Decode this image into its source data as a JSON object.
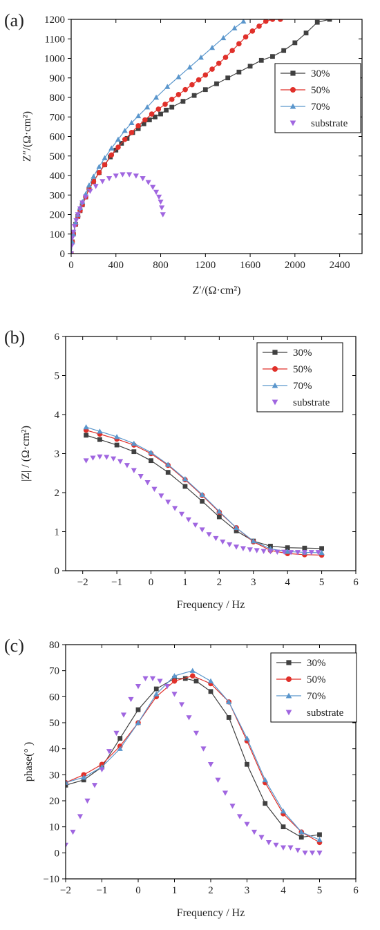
{
  "colors": {
    "30%": "#404040",
    "50%": "#e0302a",
    "70%": "#5a96cc",
    "substrate": "#a066e0"
  },
  "chart_data": [
    {
      "id": "a",
      "type": "scatter",
      "panel_label": "(a)",
      "xlabel": "Z′/(Ω·cm²)",
      "ylabel": "Z″/(Ω·cm²)",
      "xlim": [
        0,
        2600
      ],
      "ylim": [
        0,
        1200
      ],
      "xticks": [
        0,
        400,
        800,
        1200,
        1600,
        2000,
        2400
      ],
      "yticks": [
        0,
        100,
        200,
        300,
        400,
        500,
        600,
        700,
        800,
        900,
        1000,
        1100,
        1200
      ],
      "legend_position": "right",
      "series": [
        {
          "name": "30%",
          "marker": "square",
          "line": true,
          "x": [
            0,
            10,
            20,
            40,
            60,
            80,
            100,
            130,
            160,
            200,
            250,
            300,
            350,
            400,
            450,
            500,
            550,
            600,
            650,
            700,
            750,
            800,
            850,
            900,
            1000,
            1100,
            1200,
            1300,
            1400,
            1500,
            1600,
            1700,
            1800,
            1900,
            2000,
            2100,
            2200,
            2310
          ],
          "y": [
            0,
            60,
            100,
            150,
            190,
            220,
            250,
            290,
            330,
            370,
            415,
            455,
            495,
            530,
            565,
            590,
            620,
            640,
            665,
            685,
            700,
            715,
            735,
            750,
            780,
            810,
            840,
            870,
            900,
            930,
            960,
            990,
            1010,
            1040,
            1080,
            1130,
            1185,
            1200
          ]
        },
        {
          "name": "50%",
          "marker": "circle",
          "line": true,
          "x": [
            0,
            10,
            20,
            40,
            60,
            80,
            100,
            130,
            160,
            200,
            250,
            300,
            360,
            420,
            480,
            540,
            600,
            660,
            720,
            780,
            840,
            900,
            960,
            1020,
            1080,
            1140,
            1200,
            1260,
            1320,
            1380,
            1440,
            1500,
            1560,
            1620,
            1680,
            1740,
            1800,
            1870
          ],
          "y": [
            0,
            60,
            100,
            150,
            190,
            220,
            250,
            290,
            330,
            370,
            415,
            455,
            505,
            545,
            585,
            620,
            655,
            685,
            715,
            740,
            765,
            790,
            815,
            840,
            865,
            890,
            915,
            945,
            975,
            1005,
            1040,
            1075,
            1110,
            1140,
            1165,
            1190,
            1200,
            1200
          ]
        },
        {
          "name": "70%",
          "marker": "triangle-up",
          "line": true,
          "x": [
            0,
            10,
            20,
            40,
            60,
            80,
            100,
            130,
            160,
            200,
            250,
            300,
            360,
            420,
            480,
            540,
            600,
            680,
            760,
            860,
            960,
            1060,
            1160,
            1260,
            1360,
            1460,
            1540
          ],
          "y": [
            0,
            60,
            100,
            160,
            200,
            235,
            265,
            305,
            350,
            395,
            445,
            490,
            540,
            585,
            630,
            670,
            705,
            750,
            800,
            855,
            905,
            955,
            1005,
            1055,
            1105,
            1155,
            1190
          ]
        },
        {
          "name": "substrate",
          "marker": "triangle-down",
          "line": false,
          "x": [
            0,
            5,
            10,
            20,
            30,
            45,
            60,
            80,
            100,
            130,
            170,
            220,
            280,
            340,
            400,
            460,
            520,
            580,
            640,
            690,
            730,
            760,
            785,
            800,
            810,
            820
          ],
          "y": [
            0,
            40,
            80,
            110,
            140,
            170,
            200,
            230,
            260,
            290,
            320,
            345,
            370,
            385,
            398,
            405,
            405,
            398,
            385,
            365,
            340,
            315,
            290,
            265,
            235,
            200
          ]
        }
      ]
    },
    {
      "id": "b",
      "type": "scatter",
      "panel_label": "(b)",
      "xlabel": "Frequency / Hz",
      "ylabel": "|Z| / (Ω·cm²)",
      "xlim": [
        -2.5,
        6
      ],
      "ylim": [
        0,
        6
      ],
      "xticks": [
        -2,
        -1,
        0,
        1,
        2,
        3,
        4,
        5,
        6
      ],
      "yticks": [
        0,
        1,
        2,
        3,
        4,
        5,
        6
      ],
      "legend_position": "top-right",
      "series": [
        {
          "name": "30%",
          "marker": "square",
          "line": true,
          "x": [
            -1.9,
            -1.5,
            -1.0,
            -0.5,
            0.0,
            0.5,
            1.0,
            1.5,
            2.0,
            2.5,
            3.0,
            3.5,
            4.0,
            4.5,
            5.0
          ],
          "y": [
            3.47,
            3.36,
            3.22,
            3.05,
            2.82,
            2.52,
            2.16,
            1.78,
            1.38,
            1.02,
            0.76,
            0.63,
            0.59,
            0.58,
            0.57
          ]
        },
        {
          "name": "50%",
          "marker": "circle",
          "line": true,
          "x": [
            -1.9,
            -1.5,
            -1.0,
            -0.5,
            0.0,
            0.5,
            1.0,
            1.5,
            2.0,
            2.5,
            3.0,
            3.5,
            4.0,
            4.5,
            5.0
          ],
          "y": [
            3.6,
            3.5,
            3.37,
            3.22,
            3.0,
            2.7,
            2.33,
            1.93,
            1.5,
            1.1,
            0.74,
            0.52,
            0.44,
            0.41,
            0.4
          ]
        },
        {
          "name": "70%",
          "marker": "triangle-up",
          "line": true,
          "x": [
            -1.9,
            -1.5,
            -1.0,
            -0.5,
            0.0,
            0.5,
            1.0,
            1.5,
            2.0,
            2.5,
            3.0,
            3.5,
            4.0,
            4.5,
            5.0
          ],
          "y": [
            3.68,
            3.57,
            3.43,
            3.26,
            3.03,
            2.72,
            2.35,
            1.95,
            1.52,
            1.1,
            0.76,
            0.56,
            0.49,
            0.47,
            0.46
          ]
        },
        {
          "name": "substrate",
          "marker": "triangle-down",
          "line": false,
          "x": [
            -1.9,
            -1.7,
            -1.5,
            -1.3,
            -1.1,
            -0.9,
            -0.7,
            -0.5,
            -0.3,
            -0.1,
            0.1,
            0.3,
            0.5,
            0.7,
            0.9,
            1.1,
            1.3,
            1.5,
            1.7,
            1.9,
            2.1,
            2.3,
            2.5,
            2.7,
            2.9,
            3.1,
            3.3,
            3.5,
            3.7,
            3.9,
            4.1,
            4.3,
            4.5,
            4.7,
            4.9
          ],
          "y": [
            2.82,
            2.89,
            2.92,
            2.91,
            2.87,
            2.8,
            2.7,
            2.57,
            2.42,
            2.26,
            2.09,
            1.92,
            1.76,
            1.6,
            1.45,
            1.31,
            1.17,
            1.05,
            0.93,
            0.83,
            0.74,
            0.67,
            0.61,
            0.57,
            0.54,
            0.52,
            0.5,
            0.49,
            0.48,
            0.48,
            0.47,
            0.47,
            0.47,
            0.47,
            0.47
          ]
        }
      ]
    },
    {
      "id": "c",
      "type": "scatter",
      "panel_label": "(c)",
      "xlabel": "Frequency / Hz",
      "ylabel": "phase(°  )",
      "xlim": [
        -2,
        6
      ],
      "ylim": [
        -10,
        80
      ],
      "xticks": [
        -2,
        -1,
        0,
        1,
        2,
        3,
        4,
        5,
        6
      ],
      "yticks": [
        -10,
        0,
        10,
        20,
        30,
        40,
        50,
        60,
        70,
        80
      ],
      "legend_position": "top-right",
      "series": [
        {
          "name": "30%",
          "marker": "square",
          "line": true,
          "x": [
            -2.0,
            -1.5,
            -1.0,
            -0.5,
            0.0,
            0.5,
            1.0,
            1.3,
            1.6,
            2.0,
            2.5,
            3.0,
            3.5,
            4.0,
            4.5,
            5.0
          ],
          "y": [
            26,
            28,
            33,
            44,
            55,
            63,
            67,
            67,
            66,
            62,
            52,
            34,
            19,
            10,
            6,
            7
          ]
        },
        {
          "name": "50%",
          "marker": "circle",
          "line": true,
          "x": [
            -2.0,
            -1.5,
            -1.0,
            -0.5,
            0.0,
            0.5,
            1.0,
            1.5,
            2.0,
            2.5,
            3.0,
            3.5,
            4.0,
            4.5,
            5.0
          ],
          "y": [
            27,
            30,
            34,
            41,
            50,
            60,
            66,
            68,
            65,
            58,
            43,
            27,
            15,
            8,
            4
          ]
        },
        {
          "name": "70%",
          "marker": "triangle-up",
          "line": true,
          "x": [
            -2.0,
            -1.5,
            -1.0,
            -0.5,
            0.0,
            0.5,
            1.0,
            1.5,
            2.0,
            2.5,
            3.0,
            3.5,
            4.0,
            4.5,
            5.0
          ],
          "y": [
            27,
            29,
            33,
            40,
            50,
            61,
            68,
            70,
            66,
            58,
            44,
            28,
            16,
            8,
            5
          ]
        },
        {
          "name": "substrate",
          "marker": "triangle-down",
          "line": false,
          "x": [
            -2.0,
            -1.8,
            -1.6,
            -1.4,
            -1.2,
            -1.0,
            -0.8,
            -0.6,
            -0.4,
            -0.2,
            0.0,
            0.2,
            0.4,
            0.6,
            0.8,
            1.0,
            1.2,
            1.4,
            1.6,
            1.8,
            2.0,
            2.2,
            2.4,
            2.6,
            2.8,
            3.0,
            3.2,
            3.4,
            3.6,
            3.8,
            4.0,
            4.2,
            4.4,
            4.6,
            4.8,
            5.0
          ],
          "y": [
            3,
            8,
            14,
            20,
            26,
            32,
            39,
            46,
            53,
            59,
            64,
            67,
            67,
            66,
            64,
            61,
            57,
            52,
            46,
            40,
            34,
            28,
            23,
            18,
            14,
            11,
            8,
            6,
            4,
            3,
            2,
            2,
            1,
            0,
            0,
            0
          ]
        }
      ]
    }
  ]
}
